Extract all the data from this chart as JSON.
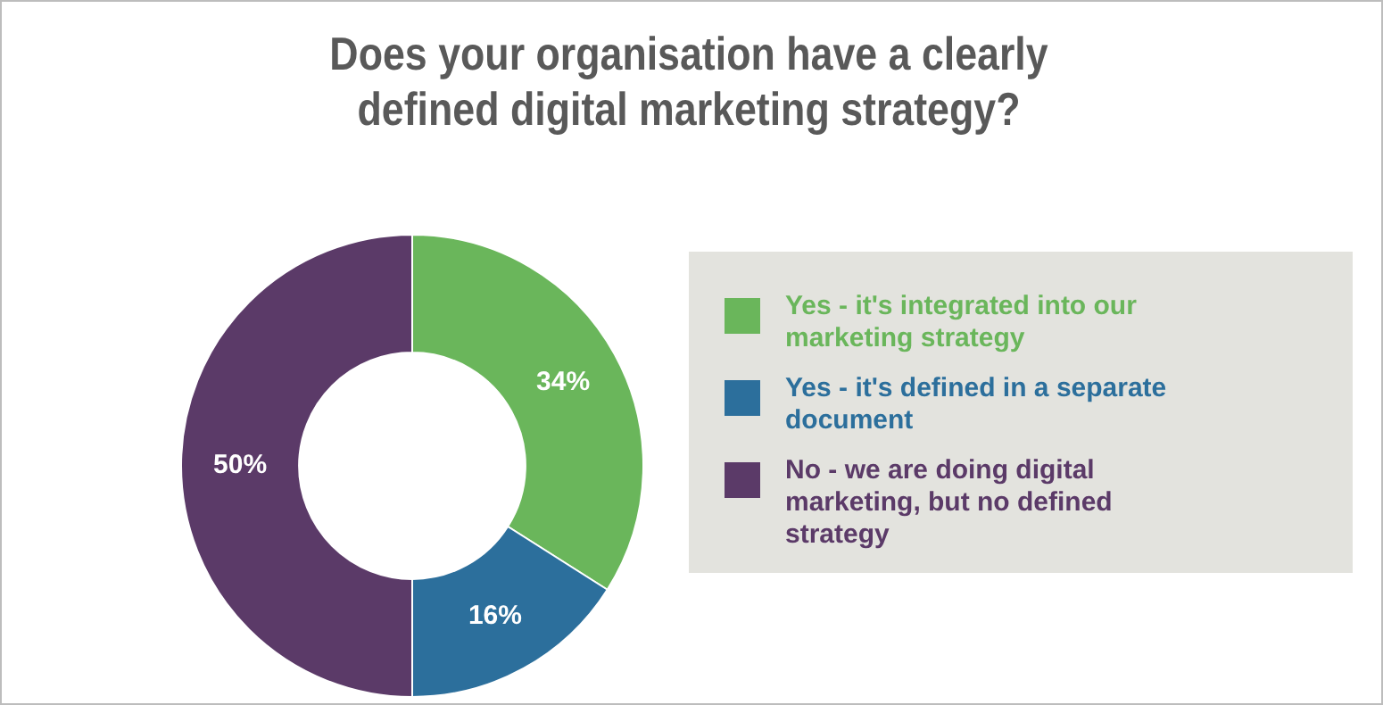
{
  "chart_data": {
    "type": "donut",
    "title": "Does your organisation have a clearly defined digital marketing strategy?",
    "categories": [
      "Yes - it's integrated into our marketing strategy",
      "Yes - it's defined in a separate document",
      "No - we are doing digital marketing, but no defined strategy"
    ],
    "values": [
      34,
      16,
      50
    ],
    "colors": [
      "#6ab65b",
      "#2c6f9c",
      "#5b3a68"
    ],
    "value_labels": [
      "34%",
      "16%",
      "50%"
    ],
    "legend": "right"
  }
}
